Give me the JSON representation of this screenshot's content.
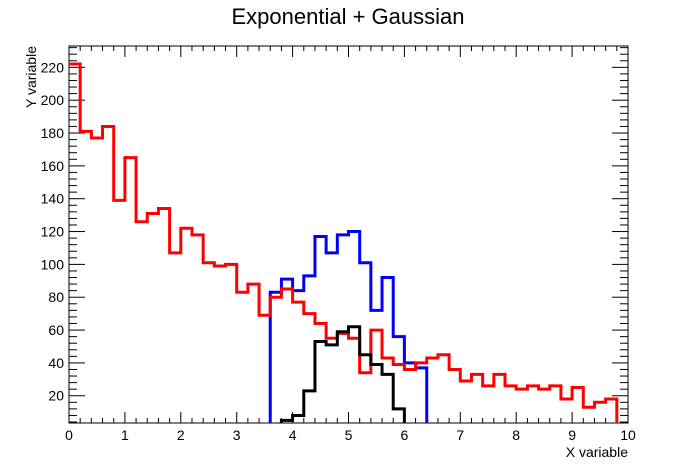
{
  "chart_data": {
    "type": "histogram",
    "title": "Exponential + Gaussian",
    "xlabel": "X variable",
    "ylabel": "Y variable",
    "xlim": [
      0,
      10
    ],
    "ylim": [
      3.4,
      233
    ],
    "x_ticks": [
      0,
      1,
      2,
      3,
      4,
      5,
      6,
      7,
      8,
      9,
      10
    ],
    "y_ticks": [
      20,
      40,
      60,
      80,
      100,
      120,
      140,
      160,
      180,
      200,
      220
    ],
    "bin_edges_start": 0,
    "bin_width": 0.2,
    "colors": {
      "red": "#ff0000",
      "blue": "#0000ff",
      "black": "#000000"
    },
    "series": [
      {
        "color": "#0000ff",
        "start_bin": 18,
        "values": [
          83,
          91,
          84,
          93,
          117,
          107,
          118,
          120,
          101,
          72,
          92,
          56,
          40,
          37
        ]
      },
      {
        "color": "#ff0000",
        "start_bin": 0,
        "values": [
          222,
          181,
          177,
          184,
          139,
          165,
          126,
          131,
          134,
          107,
          122,
          118,
          101,
          99,
          100,
          83,
          88,
          69,
          80,
          85,
          77,
          70,
          64,
          55,
          58,
          55,
          34,
          60,
          43,
          39,
          36,
          40,
          43,
          45,
          36,
          29,
          33,
          26,
          33,
          26,
          24,
          26,
          24,
          26,
          18,
          25,
          13,
          16,
          18
        ]
      },
      {
        "color": "#000000",
        "start_bin": 19,
        "values": [
          5,
          8,
          23,
          53,
          51,
          59,
          62,
          45,
          39,
          33,
          12
        ]
      }
    ]
  }
}
